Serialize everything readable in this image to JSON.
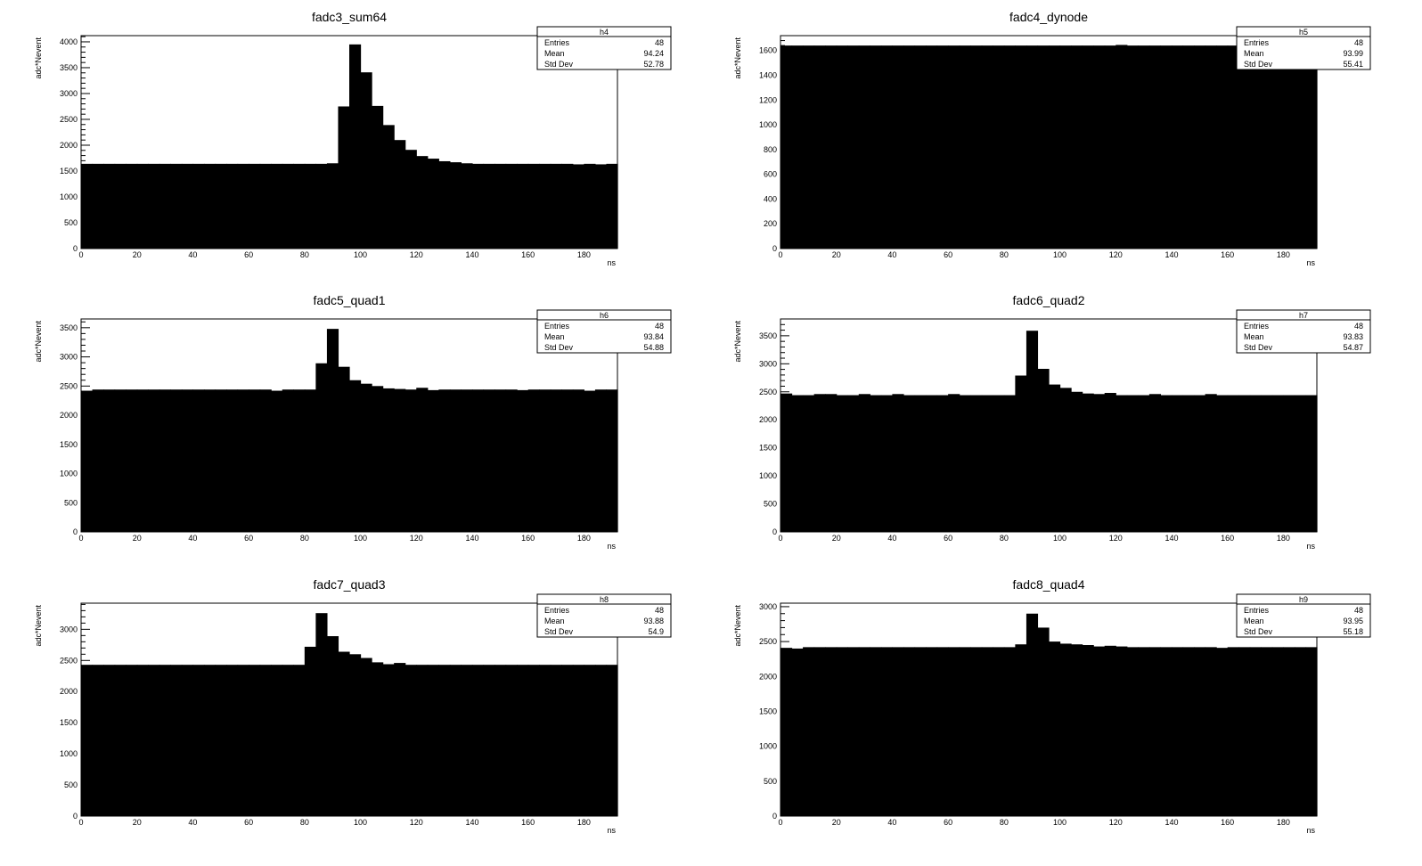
{
  "chart_data": [
    {
      "type": "bar",
      "title": "fadc3_sum64",
      "xlabel": "ns",
      "ylabel": "adc*Nevent",
      "xlim": [
        0,
        192
      ],
      "ylim": [
        0,
        4120
      ],
      "xticks": [
        0,
        20,
        40,
        60,
        80,
        100,
        120,
        140,
        160,
        180
      ],
      "yticks": [
        0,
        500,
        1000,
        1500,
        2000,
        2500,
        3000,
        3500,
        4000
      ],
      "bin_width": 4,
      "values": [
        1640,
        1640,
        1640,
        1640,
        1640,
        1640,
        1640,
        1640,
        1640,
        1640,
        1640,
        1640,
        1640,
        1640,
        1640,
        1640,
        1640,
        1640,
        1640,
        1640,
        1640,
        1640,
        1650,
        2750,
        3950,
        3410,
        2760,
        2390,
        2100,
        1910,
        1790,
        1740,
        1690,
        1670,
        1650,
        1640,
        1640,
        1640,
        1640,
        1640,
        1640,
        1640,
        1640,
        1640,
        1630,
        1640,
        1630,
        1640
      ],
      "stats": {
        "name": "h4",
        "rows": [
          {
            "label": "Entries",
            "value": "48"
          },
          {
            "label": "Mean",
            "value": "94.24"
          },
          {
            "label": "Std Dev",
            "value": "52.78"
          }
        ]
      }
    },
    {
      "type": "bar",
      "title": "fadc4_dynode",
      "xlabel": "ns",
      "ylabel": "adc*Nevent",
      "xlim": [
        0,
        192
      ],
      "ylim": [
        0,
        1720
      ],
      "xticks": [
        0,
        20,
        40,
        60,
        80,
        100,
        120,
        140,
        160,
        180
      ],
      "yticks": [
        0,
        200,
        400,
        600,
        800,
        1000,
        1200,
        1400,
        1600
      ],
      "bin_width": 4,
      "values": [
        1640,
        1640,
        1640,
        1640,
        1640,
        1640,
        1640,
        1640,
        1640,
        1640,
        1640,
        1640,
        1640,
        1640,
        1640,
        1640,
        1640,
        1640,
        1640,
        1640,
        1640,
        1640,
        1640,
        1640,
        1640,
        1640,
        1640,
        1640,
        1640,
        1640,
        1645,
        1640,
        1640,
        1640,
        1640,
        1640,
        1640,
        1640,
        1640,
        1640,
        1640,
        1640,
        1640,
        1640,
        1640,
        1640,
        1640,
        1640
      ],
      "stats": {
        "name": "h5",
        "rows": [
          {
            "label": "Entries",
            "value": "48"
          },
          {
            "label": "Mean",
            "value": "93.99"
          },
          {
            "label": "Std Dev",
            "value": "55.41"
          }
        ]
      }
    },
    {
      "type": "bar",
      "title": "fadc5_quad1",
      "xlabel": "ns",
      "ylabel": "adc*Nevent",
      "xlim": [
        0,
        192
      ],
      "ylim": [
        0,
        3650
      ],
      "xticks": [
        0,
        20,
        40,
        60,
        80,
        100,
        120,
        140,
        160,
        180
      ],
      "yticks": [
        0,
        500,
        1000,
        1500,
        2000,
        2500,
        3000,
        3500
      ],
      "bin_width": 4,
      "values": [
        2420,
        2440,
        2440,
        2440,
        2440,
        2440,
        2440,
        2440,
        2440,
        2440,
        2440,
        2440,
        2440,
        2440,
        2440,
        2440,
        2440,
        2420,
        2440,
        2440,
        2440,
        2890,
        3480,
        2830,
        2600,
        2540,
        2500,
        2460,
        2450,
        2440,
        2470,
        2430,
        2440,
        2440,
        2440,
        2440,
        2440,
        2440,
        2440,
        2430,
        2440,
        2440,
        2440,
        2440,
        2440,
        2420,
        2440,
        2440
      ],
      "stats": {
        "name": "h6",
        "rows": [
          {
            "label": "Entries",
            "value": "48"
          },
          {
            "label": "Mean",
            "value": "93.84"
          },
          {
            "label": "Std Dev",
            "value": "54.88"
          }
        ]
      }
    },
    {
      "type": "bar",
      "title": "fadc6_quad2",
      "xlabel": "ns",
      "ylabel": "adc*Nevent",
      "xlim": [
        0,
        192
      ],
      "ylim": [
        0,
        3800
      ],
      "xticks": [
        0,
        20,
        40,
        60,
        80,
        100,
        120,
        140,
        160,
        180
      ],
      "yticks": [
        0,
        500,
        1000,
        1500,
        2000,
        2500,
        3000,
        3500
      ],
      "bin_width": 4,
      "values": [
        2470,
        2440,
        2440,
        2460,
        2460,
        2440,
        2440,
        2460,
        2440,
        2440,
        2460,
        2440,
        2440,
        2440,
        2440,
        2460,
        2440,
        2440,
        2440,
        2440,
        2440,
        2790,
        3590,
        2910,
        2630,
        2570,
        2500,
        2470,
        2460,
        2480,
        2440,
        2440,
        2440,
        2460,
        2440,
        2440,
        2440,
        2440,
        2460,
        2440,
        2440,
        2440,
        2440,
        2440,
        2440,
        2440,
        2440,
        2440
      ],
      "stats": {
        "name": "h7",
        "rows": [
          {
            "label": "Entries",
            "value": "48"
          },
          {
            "label": "Mean",
            "value": "93.83"
          },
          {
            "label": "Std Dev",
            "value": "54.87"
          }
        ]
      }
    },
    {
      "type": "bar",
      "title": "fadc7_quad3",
      "xlabel": "ns",
      "ylabel": "adc*Nevent",
      "xlim": [
        0,
        192
      ],
      "ylim": [
        0,
        3420
      ],
      "xticks": [
        0,
        20,
        40,
        60,
        80,
        100,
        120,
        140,
        160,
        180
      ],
      "yticks": [
        0,
        500,
        1000,
        1500,
        2000,
        2500,
        3000
      ],
      "bin_width": 4,
      "values": [
        2430,
        2430,
        2430,
        2430,
        2430,
        2430,
        2430,
        2430,
        2430,
        2430,
        2430,
        2430,
        2430,
        2430,
        2430,
        2430,
        2430,
        2430,
        2430,
        2430,
        2720,
        3260,
        2890,
        2640,
        2600,
        2540,
        2470,
        2440,
        2460,
        2430,
        2430,
        2430,
        2430,
        2430,
        2430,
        2430,
        2430,
        2430,
        2430,
        2430,
        2430,
        2430,
        2430,
        2430,
        2430,
        2430,
        2430,
        2430
      ],
      "stats": {
        "name": "h8",
        "rows": [
          {
            "label": "Entries",
            "value": "48"
          },
          {
            "label": "Mean",
            "value": "93.88"
          },
          {
            "label": "Std Dev",
            "value": "54.9"
          }
        ]
      }
    },
    {
      "type": "bar",
      "title": "fadc8_quad4",
      "xlabel": "ns",
      "ylabel": "adc*Nevent",
      "xlim": [
        0,
        192
      ],
      "ylim": [
        0,
        3050
      ],
      "xticks": [
        0,
        20,
        40,
        60,
        80,
        100,
        120,
        140,
        160,
        180
      ],
      "yticks": [
        0,
        500,
        1000,
        1500,
        2000,
        2500,
        3000
      ],
      "bin_width": 4,
      "values": [
        2410,
        2400,
        2420,
        2420,
        2420,
        2420,
        2420,
        2420,
        2420,
        2420,
        2420,
        2420,
        2420,
        2420,
        2420,
        2420,
        2420,
        2420,
        2420,
        2420,
        2420,
        2460,
        2900,
        2700,
        2500,
        2470,
        2460,
        2450,
        2430,
        2440,
        2430,
        2420,
        2420,
        2420,
        2420,
        2420,
        2420,
        2420,
        2420,
        2410,
        2420,
        2420,
        2420,
        2420,
        2420,
        2420,
        2420,
        2420
      ],
      "stats": {
        "name": "h9",
        "rows": [
          {
            "label": "Entries",
            "value": "48"
          },
          {
            "label": "Mean",
            "value": "93.95"
          },
          {
            "label": "Std Dev",
            "value": "55.18"
          }
        ]
      }
    }
  ]
}
